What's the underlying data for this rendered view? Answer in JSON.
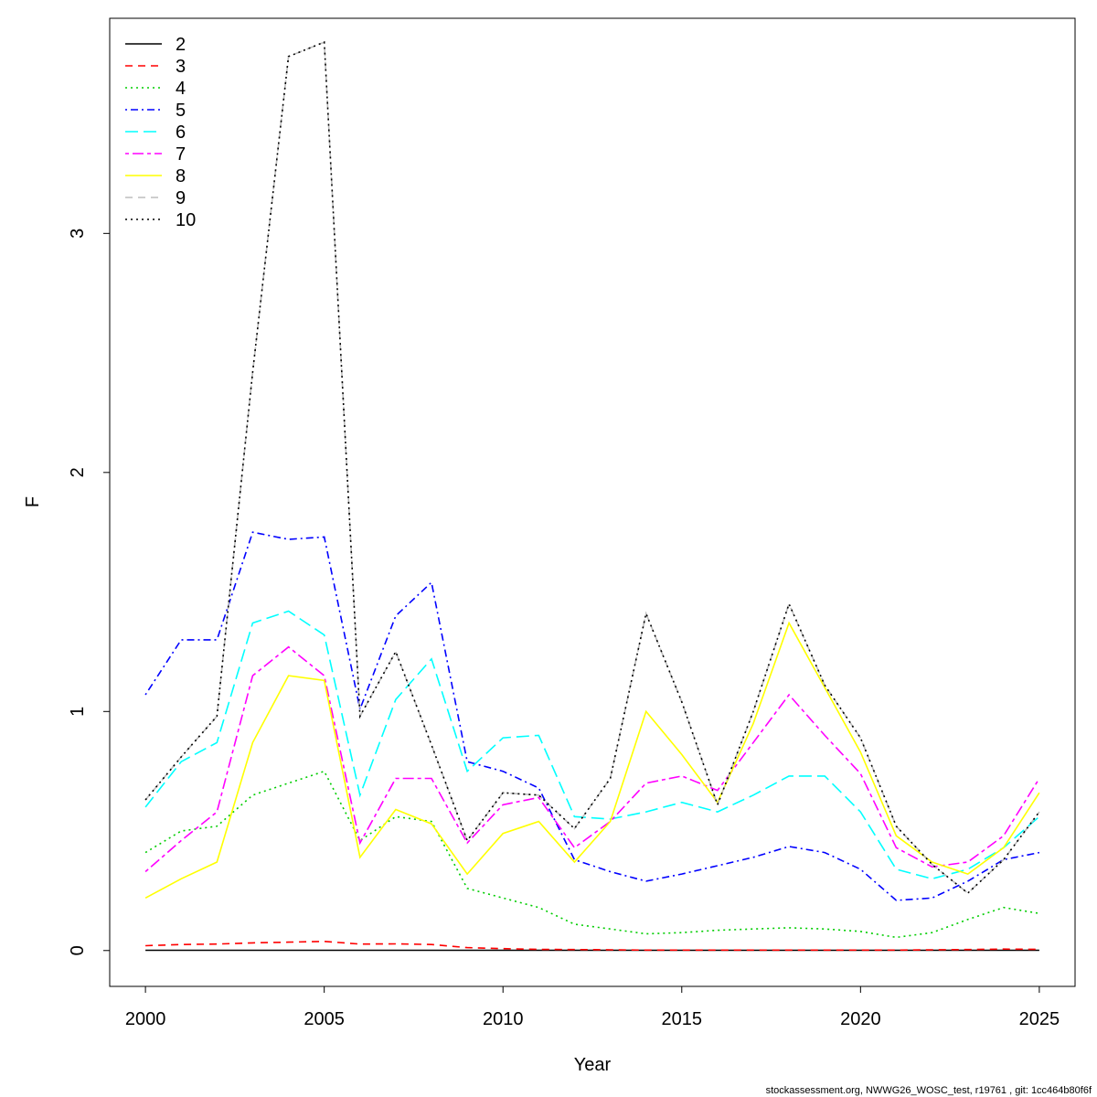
{
  "chart_data": {
    "type": "line",
    "title": "",
    "xlabel": "Year",
    "ylabel": "F",
    "xlim": [
      1999,
      2026
    ],
    "ylim": [
      -0.15,
      3.9
    ],
    "xticks": [
      2000,
      2005,
      2010,
      2015,
      2020,
      2025
    ],
    "yticks": [
      0,
      1,
      2,
      3
    ],
    "legend_position": "top-left",
    "x": [
      2000,
      2001,
      2002,
      2003,
      2004,
      2005,
      2006,
      2007,
      2008,
      2009,
      2010,
      2011,
      2012,
      2013,
      2014,
      2015,
      2016,
      2017,
      2018,
      2019,
      2020,
      2021,
      2022,
      2023,
      2024,
      2025
    ],
    "series": [
      {
        "name": "2",
        "color": "#000000",
        "dash": "solid",
        "values": [
          0.001,
          0.001,
          0.001,
          0.001,
          0.001,
          0.001,
          0.001,
          0.001,
          0.001,
          0.001,
          0.001,
          0.001,
          0.001,
          0.001,
          0.001,
          0.001,
          0.001,
          0.001,
          0.001,
          0.001,
          0.001,
          0.001,
          0.001,
          0.001,
          0.001,
          0.001
        ]
      },
      {
        "name": "3",
        "color": "#ff0000",
        "dash": "dashed",
        "values": [
          0.02,
          0.025,
          0.027,
          0.032,
          0.035,
          0.038,
          0.027,
          0.028,
          0.025,
          0.012,
          0.008,
          0.005,
          0.004,
          0.003,
          0.002,
          0.002,
          0.002,
          0.002,
          0.002,
          0.002,
          0.002,
          0.002,
          0.003,
          0.004,
          0.006,
          0.005
        ]
      },
      {
        "name": "4",
        "color": "#00cd00",
        "dash": "dotted",
        "values": [
          0.41,
          0.5,
          0.52,
          0.65,
          0.7,
          0.75,
          0.46,
          0.56,
          0.54,
          0.26,
          0.22,
          0.18,
          0.11,
          0.09,
          0.07,
          0.075,
          0.085,
          0.09,
          0.095,
          0.09,
          0.08,
          0.055,
          0.075,
          0.13,
          0.18,
          0.155
        ]
      },
      {
        "name": "5",
        "color": "#0000ff",
        "dash": "dotdash",
        "values": [
          1.07,
          1.3,
          1.3,
          1.75,
          1.72,
          1.73,
          1.01,
          1.4,
          1.54,
          0.79,
          0.75,
          0.68,
          0.38,
          0.33,
          0.29,
          0.32,
          0.355,
          0.39,
          0.435,
          0.41,
          0.34,
          0.21,
          0.22,
          0.29,
          0.38,
          0.41
        ]
      },
      {
        "name": "6",
        "color": "#00ffff",
        "dash": "longdash",
        "values": [
          0.6,
          0.79,
          0.87,
          1.37,
          1.42,
          1.32,
          0.65,
          1.05,
          1.22,
          0.75,
          0.89,
          0.9,
          0.56,
          0.55,
          0.58,
          0.62,
          0.58,
          0.65,
          0.73,
          0.73,
          0.58,
          0.34,
          0.3,
          0.34,
          0.43,
          0.56
        ]
      },
      {
        "name": "7",
        "color": "#ff00ff",
        "dash": "twodash",
        "values": [
          0.33,
          0.46,
          0.58,
          1.15,
          1.27,
          1.15,
          0.45,
          0.72,
          0.72,
          0.45,
          0.61,
          0.64,
          0.43,
          0.54,
          0.7,
          0.73,
          0.67,
          0.87,
          1.07,
          0.9,
          0.74,
          0.43,
          0.35,
          0.37,
          0.48,
          0.72
        ]
      },
      {
        "name": "8",
        "color": "#ffff00",
        "dash": "solid",
        "values": [
          0.22,
          0.3,
          0.37,
          0.87,
          1.15,
          1.13,
          0.39,
          0.59,
          0.53,
          0.32,
          0.49,
          0.54,
          0.37,
          0.54,
          1.0,
          0.82,
          0.62,
          0.95,
          1.37,
          1.1,
          0.83,
          0.48,
          0.37,
          0.32,
          0.43,
          0.66
        ]
      },
      {
        "name": "9",
        "color": "#bebebe",
        "dash": "dashed",
        "values": [
          0.63,
          0.81,
          0.98,
          2.42,
          3.74,
          3.8,
          0.98,
          1.25,
          0.86,
          0.46,
          0.66,
          0.65,
          0.51,
          0.72,
          1.41,
          1.04,
          0.61,
          1.0,
          1.45,
          1.11,
          0.89,
          0.52,
          0.36,
          0.24,
          0.38,
          0.58
        ]
      },
      {
        "name": "10",
        "color": "#000000",
        "dash": "dotted",
        "values": [
          0.63,
          0.81,
          0.98,
          2.42,
          3.74,
          3.8,
          0.98,
          1.25,
          0.86,
          0.46,
          0.66,
          0.65,
          0.51,
          0.72,
          1.41,
          1.04,
          0.61,
          1.0,
          1.45,
          1.11,
          0.89,
          0.52,
          0.36,
          0.24,
          0.38,
          0.58
        ]
      }
    ]
  },
  "footer_text": "stockassessment.org, NWWG26_WOSC_test, r19761 , git: 1cc464b80f6f"
}
